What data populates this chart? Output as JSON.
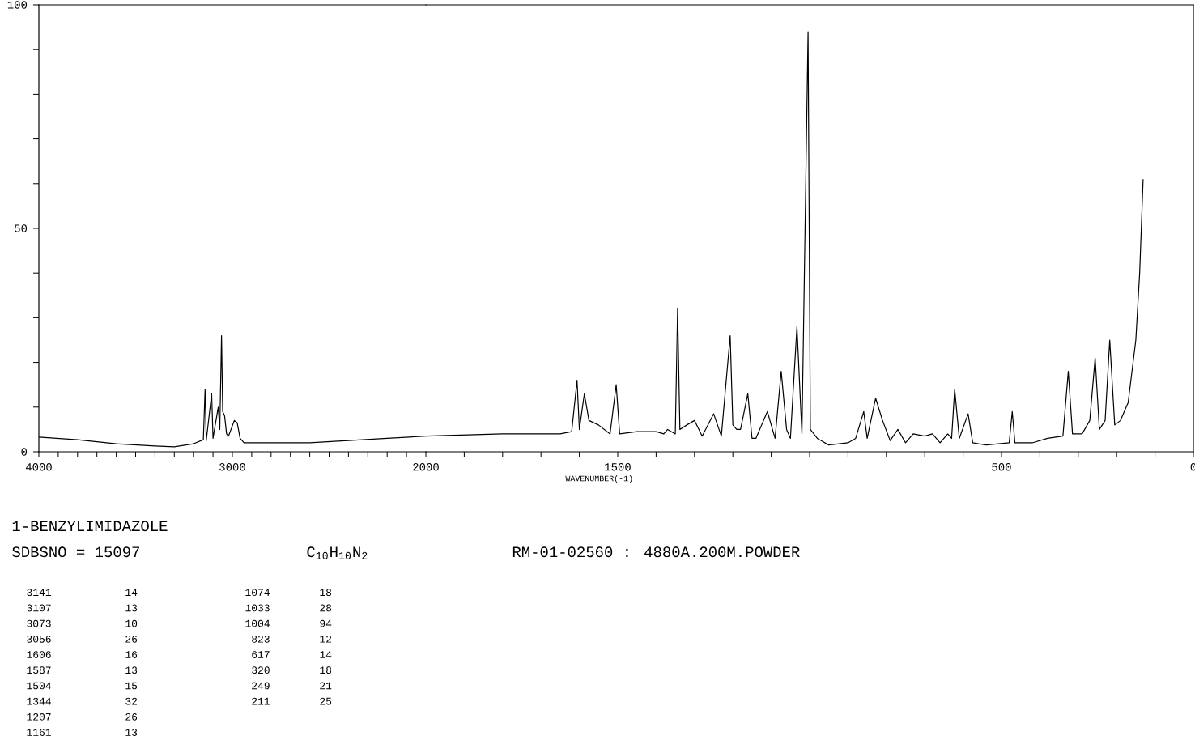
{
  "chart_data": [
    {
      "type": "line",
      "xlim": [
        4000,
        2000
      ],
      "ylim": [
        0,
        100
      ],
      "xticks": [
        4000,
        {
          "value": 3900,
          "label": null
        },
        {
          "value": 3800,
          "label": null
        },
        {
          "value": 3700,
          "label": null
        },
        {
          "value": 3600,
          "label": null
        },
        {
          "value": 3500,
          "label": null
        },
        {
          "value": 3400,
          "label": null
        },
        {
          "value": 3300,
          "label": null
        },
        {
          "value": 3200,
          "label": null
        },
        {
          "value": 3100,
          "label": null
        },
        3000,
        {
          "value": 2900,
          "label": null
        },
        {
          "value": 2800,
          "label": null
        },
        {
          "value": 2700,
          "label": null
        },
        {
          "value": 2600,
          "label": null
        },
        {
          "value": 2500,
          "label": null
        },
        {
          "value": 2400,
          "label": null
        },
        {
          "value": 2300,
          "label": null
        },
        {
          "value": 2200,
          "label": null
        },
        {
          "value": 2100,
          "label": null
        },
        2000
      ],
      "yticks": [
        0,
        {
          "value": 10,
          "label": null
        },
        {
          "value": 20,
          "label": null
        },
        {
          "value": 30,
          "label": null
        },
        {
          "value": 40,
          "label": null
        },
        50,
        {
          "value": 60,
          "label": null
        },
        {
          "value": 70,
          "label": null
        },
        {
          "value": 80,
          "label": null
        },
        {
          "value": 90,
          "label": null
        },
        100
      ],
      "series": [
        {
          "color": "#000000",
          "x": [
            4000,
            3800,
            3600,
            3400,
            3300,
            3200,
            3150,
            3141,
            3135,
            3107,
            3100,
            3073,
            3065,
            3056,
            3050,
            3040,
            3030,
            3020,
            2990,
            2975,
            2960,
            2940,
            2800,
            2600,
            2400,
            2200,
            2000
          ],
          "values": [
            3.3,
            2.7,
            1.8,
            1.3,
            1.1,
            1.8,
            2.7,
            14,
            2.5,
            13,
            3,
            10,
            5,
            26,
            9,
            8,
            4,
            3.5,
            7,
            6.5,
            3,
            2,
            2,
            2,
            2.5,
            3,
            3.5
          ]
        }
      ],
      "annotations": [
        "1-BENZYLIMIDAZOLE",
        "SDBSNO = 15097",
        "C$_{10}$H$_{10}$N$_{2}$",
        "RM-01-02560 : 4880A.200M.POWDER",
        "3141",
        "14",
        "3107",
        "13",
        "3073",
        "10",
        "3056",
        "26",
        "1606",
        "16",
        "1587",
        "13",
        "1504",
        "15",
        "1344",
        "32",
        "1207",
        "26",
        "1161",
        "13",
        "1074",
        "18",
        "1033",
        "28",
        "1004",
        "94",
        "823",
        "12",
        "617",
        "14",
        "320",
        "18",
        "249",
        "21",
        "211",
        "25"
      ]
    },
    {
      "type": "line",
      "xlabel": "WAVENUMBER(-1)",
      "xlim": [
        2000,
        0
      ],
      "ylim": [
        0,
        100
      ],
      "tick_labels": "x",
      "xticks": [
        {
          "value": 1900,
          "label": null
        },
        {
          "value": 1800,
          "label": null
        },
        {
          "value": 1700,
          "label": null
        },
        {
          "value": 1600,
          "label": null
        },
        1500,
        {
          "value": 1400,
          "label": null
        },
        {
          "value": 1300,
          "label": null
        },
        {
          "value": 1200,
          "label": null
        },
        {
          "value": 1100,
          "label": null
        },
        {
          "value": 1000,
          "label": null
        },
        {
          "value": 900,
          "label": null
        },
        {
          "value": 800,
          "label": null
        },
        {
          "value": 700,
          "label": null
        },
        {
          "value": 600,
          "label": null
        },
        500,
        {
          "value": 400,
          "label": null
        },
        {
          "value": 300,
          "label": null
        },
        {
          "value": 200,
          "label": null
        },
        {
          "value": 100,
          "label": null
        },
        0
      ],
      "series": [
        {
          "color": "#000000",
          "x": [
            2000,
            1800,
            1700,
            1650,
            1620,
            1606,
            1600,
            1587,
            1575,
            1550,
            1520,
            1504,
            1495,
            1450,
            1400,
            1380,
            1370,
            1350,
            1344,
            1338,
            1320,
            1300,
            1280,
            1250,
            1230,
            1207,
            1200,
            1190,
            1180,
            1161,
            1150,
            1140,
            1110,
            1090,
            1074,
            1060,
            1050,
            1033,
            1020,
            1004,
            998,
            980,
            950,
            900,
            880,
            859,
            850,
            828,
            810,
            790,
            770,
            750,
            730,
            700,
            680,
            660,
            640,
            630,
            622,
            610,
            587,
            575,
            540,
            480,
            472,
            465,
            420,
            380,
            340,
            326,
            315,
            290,
            270,
            256,
            245,
            230,
            218,
            205,
            190,
            170,
            150,
            140,
            131
          ],
          "values": [
            3.5,
            4,
            4,
            4,
            4.5,
            16,
            5,
            13,
            7,
            6,
            4,
            15,
            4,
            4.5,
            4.5,
            4,
            5,
            4,
            32,
            5,
            6,
            7,
            3.5,
            8.5,
            3.5,
            26,
            6,
            5,
            5,
            13,
            3,
            3,
            9,
            3,
            18,
            5,
            3,
            28,
            4,
            94,
            5,
            3,
            1.5,
            2,
            3,
            9,
            3,
            12,
            7,
            2.5,
            5,
            2,
            4,
            3.5,
            4,
            2,
            4,
            3,
            14,
            3,
            8.5,
            2,
            1.5,
            2,
            9,
            2,
            2,
            3,
            3.5,
            18,
            4,
            4,
            7,
            21,
            5,
            7,
            25,
            6,
            7,
            11,
            25,
            40,
            61
          ]
        }
      ]
    }
  ]
}
